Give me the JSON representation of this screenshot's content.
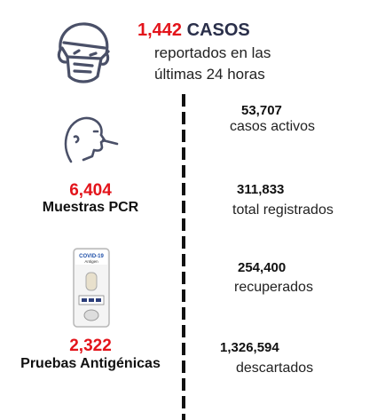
{
  "header": {
    "cases_number": "1,442",
    "cases_label": "CASOS",
    "cases_line1": "reportados en las",
    "cases_line2": "últimas 24 horas"
  },
  "left": {
    "pcr_number": "6,404",
    "pcr_label": "Muestras PCR",
    "antigen_number": "2,322",
    "antigen_label": "Pruebas Antigénicas"
  },
  "stats": [
    {
      "value": "53,707",
      "label": "casos activos"
    },
    {
      "value": "311,833",
      "label": "total registrados"
    },
    {
      "value": "254,400",
      "label": "recuperados"
    },
    {
      "value": "1,326,594",
      "label": "descartados"
    }
  ],
  "test_kit": {
    "brand": "COVID-19",
    "subtitle": "Antigen"
  },
  "icons": [
    "masked-person-icon",
    "nasal-swab-icon",
    "antigen-test-kit-icon"
  ],
  "colors": {
    "highlight": "#e3141b",
    "title": "#2a2f4a",
    "icon": "#4a5068"
  }
}
